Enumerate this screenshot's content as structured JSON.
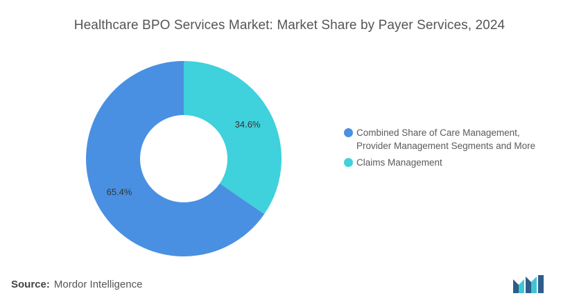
{
  "chart_data": {
    "type": "pie",
    "title": "Healthcare BPO Services Market: Market Share by Payer Services, 2024",
    "series": [
      {
        "name": "Combined Share of Care Management, Provider Management Segments and More",
        "value": 65.4,
        "label": "65.4%",
        "color": "#4a90e2"
      },
      {
        "name": "Claims Management",
        "value": 34.6,
        "label": "34.6%",
        "color": "#3fd1dc"
      }
    ],
    "legend_position": "right"
  },
  "legend": {
    "item1_line1": "Combined Share of Care Management,",
    "item1_line2": "Provider Management Segments and More",
    "item2": "Claims Management"
  },
  "source": {
    "label": "Source:",
    "text": "Mordor Intelligence"
  },
  "logo": {
    "icon": "mordor-intelligence-logo-icon",
    "colors": [
      "#2d5d8a",
      "#3fc6d4"
    ]
  }
}
